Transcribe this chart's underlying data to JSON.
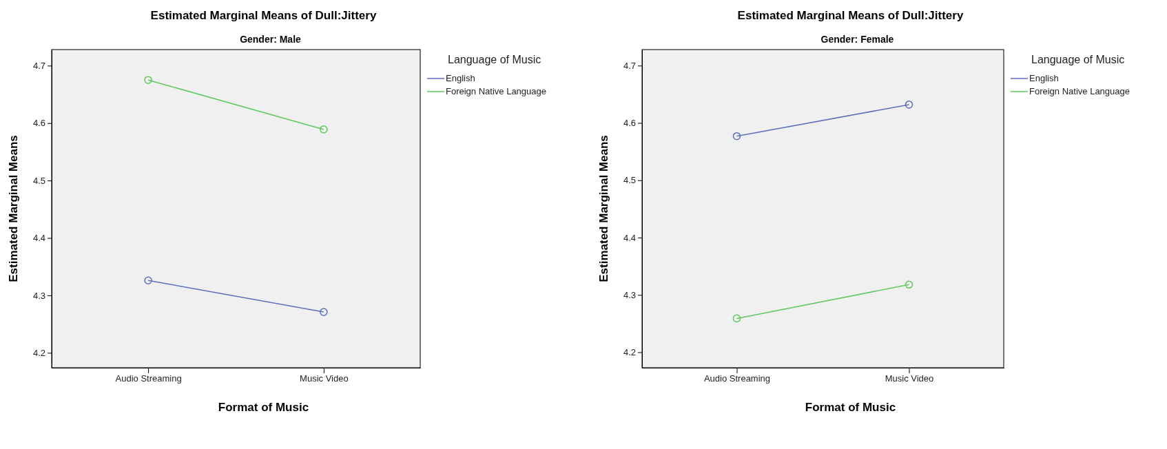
{
  "chart_data": [
    {
      "type": "line",
      "title": "Estimated Marginal Means of Dull:Jittery",
      "subtitle": "Gender: Male",
      "xlabel": "Format of Music",
      "ylabel": "Estimated Marginal Means",
      "legend_title": "Language of Music",
      "legend": "top right",
      "marker": "circle",
      "categories": [
        "Audio Streaming",
        "Music Video"
      ],
      "ylim": [
        4.174,
        4.728
      ],
      "yticks": [
        4.2,
        4.3,
        4.4,
        4.5,
        4.6,
        4.7
      ],
      "series": [
        {
          "name": "English",
          "color": "#5d6fbf",
          "values": [
            4.326,
            4.271
          ]
        },
        {
          "name": "Foreign Native Language",
          "color": "#5ec95e",
          "values": [
            4.675,
            4.589
          ]
        }
      ]
    },
    {
      "type": "line",
      "title": "Estimated Marginal Means of Dull:Jittery",
      "subtitle": "Gender: Female",
      "xlabel": "Format of Music",
      "ylabel": "Estimated Marginal Means",
      "legend_title": "Language of Music",
      "legend": "top right",
      "marker": "circle",
      "categories": [
        "Audio Streaming",
        "Music Video"
      ],
      "ylim": [
        4.173,
        4.728
      ],
      "yticks": [
        4.2,
        4.3,
        4.4,
        4.5,
        4.6,
        4.7
      ],
      "series": [
        {
          "name": "English",
          "color": "#5d6fbf",
          "values": [
            4.577,
            4.632
          ]
        },
        {
          "name": "Foreign Native Language",
          "color": "#5ec95e",
          "values": [
            4.259,
            4.318
          ]
        }
      ]
    }
  ]
}
